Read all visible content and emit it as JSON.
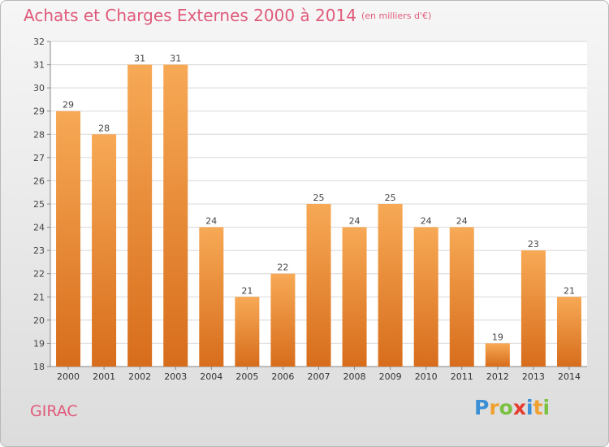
{
  "header": {
    "title": "Achats et Charges Externes 2000 à 2014",
    "unit": "(en milliers d'€)"
  },
  "footer": {
    "commune": "GIRAC"
  },
  "logo": {
    "letters": [
      "P",
      "r",
      "o",
      "x",
      "i",
      "t",
      "i"
    ],
    "colors": [
      "#3a8fd6",
      "#f0a030",
      "#7ac142",
      "#e63b2e",
      "#3a8fd6",
      "#f0a030",
      "#7ac142"
    ]
  },
  "colors": {
    "bar_light": "#f7a955",
    "bar_dark": "#d76d1c",
    "accent": "#e05a7a"
  },
  "chart_data": {
    "type": "bar",
    "title": "Achats et Charges Externes 2000 à 2014",
    "subtitle": "(en milliers d'€)",
    "categories": [
      "2000",
      "2001",
      "2002",
      "2003",
      "2004",
      "2005",
      "2006",
      "2007",
      "2008",
      "2009",
      "2010",
      "2011",
      "2012",
      "2013",
      "2014"
    ],
    "values": [
      29,
      28,
      31,
      31,
      24,
      21,
      22,
      25,
      24,
      25,
      24,
      24,
      19,
      23,
      21
    ],
    "ylim": [
      18,
      32
    ],
    "yticks": [
      18,
      19,
      20,
      21,
      22,
      23,
      24,
      25,
      26,
      27,
      28,
      29,
      30,
      31,
      32
    ],
    "grid": true,
    "data_labels": true
  }
}
